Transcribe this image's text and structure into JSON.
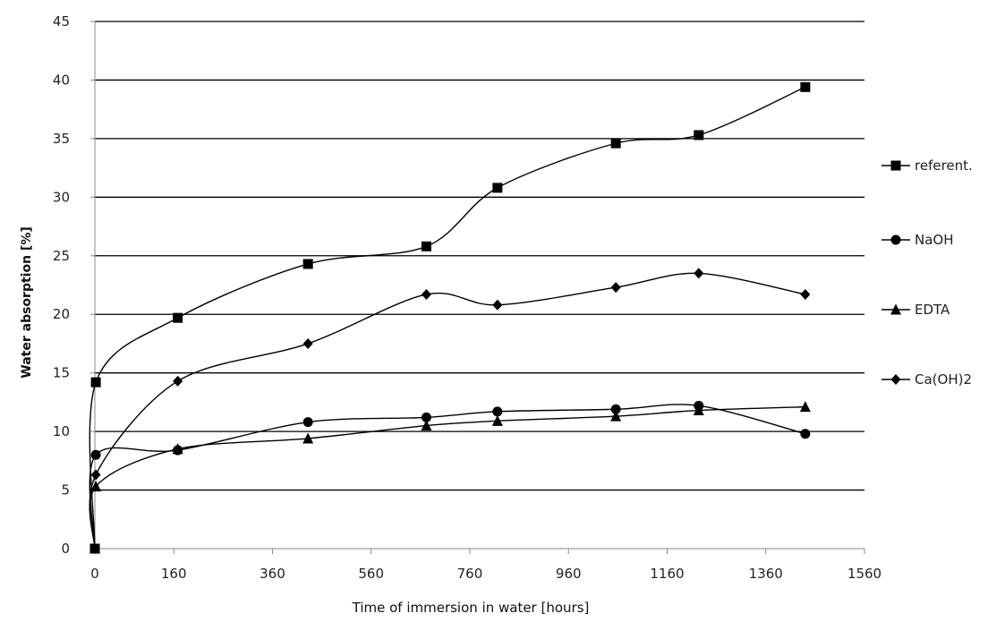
{
  "chart_data": {
    "type": "line",
    "xlabel": "Time of immersion in water [hours]",
    "ylabel": "Water absorption  [%]",
    "xlim": [
      0,
      1560
    ],
    "ylim": [
      0,
      45
    ],
    "xticks": [
      0,
      160,
      360,
      560,
      760,
      960,
      1160,
      1360,
      1560
    ],
    "yticks": [
      0,
      5,
      10,
      15,
      20,
      25,
      30,
      35,
      40,
      45
    ],
    "grid": "horizontal",
    "legend_position": "right",
    "line_color": "#000000",
    "series": [
      {
        "name": "referent.",
        "marker": "square",
        "points": [
          [
            0,
            0
          ],
          [
            2,
            14.2
          ],
          [
            168,
            19.7
          ],
          [
            432,
            24.3
          ],
          [
            672,
            25.8
          ],
          [
            816,
            30.8
          ],
          [
            1056,
            34.6
          ],
          [
            1224,
            35.3
          ],
          [
            1440,
            39.4
          ]
        ]
      },
      {
        "name": "NaOH",
        "marker": "circle",
        "points": [
          [
            0,
            0
          ],
          [
            2,
            8.0
          ],
          [
            168,
            8.4
          ],
          [
            432,
            10.8
          ],
          [
            672,
            11.2
          ],
          [
            816,
            11.7
          ],
          [
            1056,
            11.9
          ],
          [
            1224,
            12.2
          ],
          [
            1440,
            9.8
          ]
        ]
      },
      {
        "name": "EDTA",
        "marker": "triangle",
        "points": [
          [
            0,
            0
          ],
          [
            2,
            5.3
          ],
          [
            168,
            8.5
          ],
          [
            432,
            9.4
          ],
          [
            672,
            10.5
          ],
          [
            816,
            10.9
          ],
          [
            1056,
            11.3
          ],
          [
            1224,
            11.8
          ],
          [
            1440,
            12.1
          ]
        ]
      },
      {
        "name": "Ca(OH)2",
        "marker": "diamond",
        "points": [
          [
            0,
            0
          ],
          [
            2,
            6.3
          ],
          [
            168,
            14.3
          ],
          [
            432,
            17.5
          ],
          [
            672,
            21.7
          ],
          [
            816,
            20.8
          ],
          [
            1056,
            22.3
          ],
          [
            1224,
            23.5
          ],
          [
            1440,
            21.7
          ]
        ]
      }
    ]
  }
}
